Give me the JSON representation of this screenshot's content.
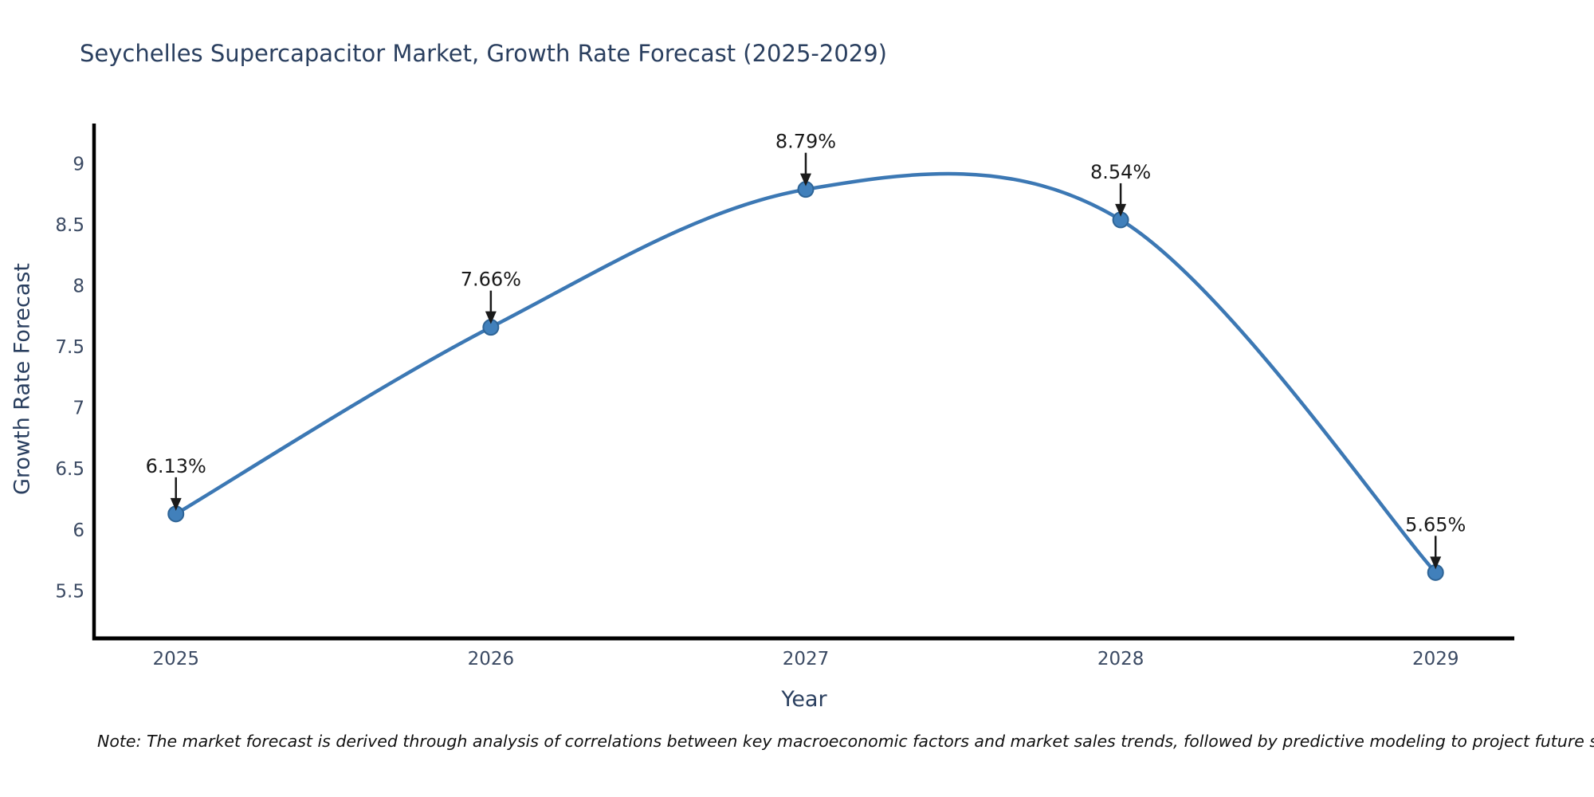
{
  "header": {
    "title": "Seychelles Supercapacitor Market, Growth Rate Forecast (2025-2029)"
  },
  "footer": {
    "note": "Note: The market forecast is derived through analysis of correlations between key macroeconomic factors and market sales trends, followed by predictive modeling to project future sales"
  },
  "chart_data": {
    "type": "line",
    "title": "Seychelles Supercapacitor Market, Growth Rate Forecast (2025-2029)",
    "xlabel": "Year",
    "ylabel": "Growth Rate Forecast",
    "x": [
      2025,
      2026,
      2027,
      2028,
      2029
    ],
    "series": [
      {
        "name": "Growth Rate Forecast",
        "values": [
          6.13,
          7.66,
          8.79,
          8.54,
          5.65
        ]
      }
    ],
    "point_labels": [
      "6.13%",
      "7.66%",
      "8.79%",
      "8.54%",
      "5.65%"
    ],
    "yticks": [
      9,
      8.5,
      8,
      7.5,
      7,
      6.5,
      6,
      5.5
    ],
    "xticks": [
      "2025",
      "2026",
      "2027",
      "2028",
      "2029"
    ],
    "xlim": [
      2024.74,
      2029.25
    ],
    "ylim": [
      5.11,
      9.33
    ],
    "grid": false,
    "legend_position": "none",
    "curve": "spline",
    "annotation_arrows": "down",
    "colors": {
      "line": "#3c78b4",
      "marker_fill": "#4180bb",
      "marker_edge": "#2e6496",
      "axis": "#000000",
      "title_text": "#2a3f5f",
      "tick_text": "#3b4a63",
      "annotation_text": "#1a1a1a",
      "note_text": "#111111"
    }
  }
}
